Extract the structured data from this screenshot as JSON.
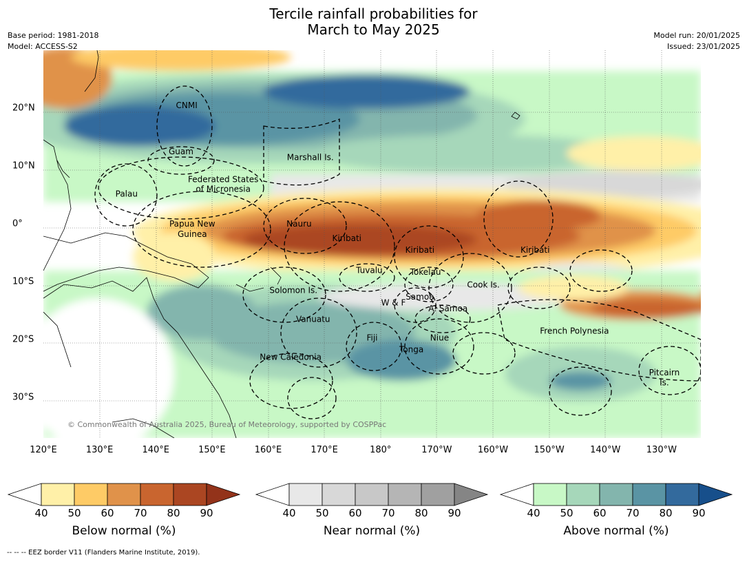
{
  "title": {
    "line1": "Tercile rainfall probabilities for",
    "line2": "March to May 2025"
  },
  "meta": {
    "base_period": "Base period: 1981-2018",
    "model": "Model: ACCESS-S2",
    "model_run": "Model run: 20/01/2025",
    "issued": "Issued: 23/01/2025"
  },
  "copyright": "© Commonwealth of Australia 2025, Bureau of Meteorology, supported by COSPPac",
  "footnote": "--  --  -- EEZ border V11 (Flanders Marine Institute, 2019).",
  "lon_labels": [
    "120°E",
    "130°E",
    "140°E",
    "150°E",
    "160°E",
    "170°E",
    "180°",
    "170°W",
    "160°W",
    "150°W",
    "140°W",
    "130°W"
  ],
  "lat_labels": [
    "20°N",
    "10°N",
    "0°",
    "10°S",
    "20°S",
    "30°S"
  ],
  "map_extent": {
    "lon": [
      120,
      237
    ],
    "lat": [
      -37,
      30
    ]
  },
  "regions": [
    {
      "name": "CNMI",
      "lon": 145.5,
      "lat": 20.5
    },
    {
      "name": "Guam",
      "lon": 144.5,
      "lat": 12.5
    },
    {
      "name": "Marshall Is.",
      "lon": 167.5,
      "lat": 11.5
    },
    {
      "name": "Federated States",
      "lon": 152.0,
      "lat": 7.7
    },
    {
      "name": "of Micronesia",
      "lon": 152.0,
      "lat": 6.0
    },
    {
      "name": "Palau",
      "lon": 134.8,
      "lat": 5.2
    },
    {
      "name": "Papua New",
      "lon": 146.5,
      "lat": 0.0
    },
    {
      "name": "Guinea",
      "lon": 146.5,
      "lat": -1.8
    },
    {
      "name": "Nauru",
      "lon": 165.5,
      "lat": 0.0
    },
    {
      "name": "Kiribati",
      "lon": 174.0,
      "lat": -2.5
    },
    {
      "name": "Kiribati",
      "lon": 187.0,
      "lat": -4.5
    },
    {
      "name": "Kiribati",
      "lon": 207.5,
      "lat": -4.5
    },
    {
      "name": "Tuvalu",
      "lon": 178.0,
      "lat": -8.0
    },
    {
      "name": "Tokelau",
      "lon": 188.0,
      "lat": -8.3
    },
    {
      "name": "Solomon Is.",
      "lon": 164.5,
      "lat": -11.5
    },
    {
      "name": "Cook Is.",
      "lon": 198.3,
      "lat": -10.5
    },
    {
      "name": "Samoa",
      "lon": 187.0,
      "lat": -12.6
    },
    {
      "name": "W & F",
      "lon": 182.3,
      "lat": -13.6
    },
    {
      "name": "A. Samoa",
      "lon": 192.0,
      "lat": -14.6
    },
    {
      "name": "Vanuatu",
      "lon": 168.0,
      "lat": -16.5
    },
    {
      "name": "French Polynesia",
      "lon": 214.5,
      "lat": -18.5
    },
    {
      "name": "Fiji",
      "lon": 178.5,
      "lat": -19.7
    },
    {
      "name": "Niue",
      "lon": 190.5,
      "lat": -19.7
    },
    {
      "name": "Tonga",
      "lon": 185.5,
      "lat": -21.7
    },
    {
      "name": "New Caledonia",
      "lon": 164.0,
      "lat": -23.0
    },
    {
      "name": "Pitcairn",
      "lon": 230.5,
      "lat": -25.7
    },
    {
      "name": "Is.",
      "lon": 230.5,
      "lat": -27.4
    }
  ],
  "colorbars": [
    {
      "label": "Below normal (%)",
      "ticks": [
        "40",
        "50",
        "60",
        "70",
        "80",
        "90"
      ],
      "colors": [
        "#fff0a8",
        "#fecb66",
        "#e0924a",
        "#c9652f",
        "#ab4622"
      ],
      "extend": "#93331a"
    },
    {
      "label": "Near normal (%)",
      "ticks": [
        "40",
        "50",
        "60",
        "70",
        "80",
        "90"
      ],
      "colors": [
        "#e8e8e8",
        "#d8d8d8",
        "#c8c8c8",
        "#b5b5b5",
        "#a0a0a0"
      ],
      "extend": "#858585"
    },
    {
      "label": "Above normal (%)",
      "ticks": [
        "40",
        "50",
        "60",
        "70",
        "80",
        "90"
      ],
      "colors": [
        "#c8f8c6",
        "#a6d7ba",
        "#83b5ad",
        "#5a94a4",
        "#336a9d"
      ],
      "extend": "#174f8b"
    }
  ]
}
